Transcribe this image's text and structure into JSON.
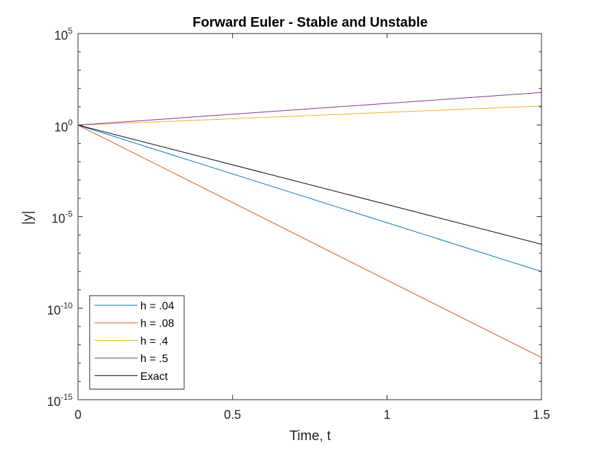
{
  "chart_data": {
    "type": "line",
    "title": "Forward Euler - Stable and Unstable",
    "xlabel": "Time, t",
    "ylabel": "|y|",
    "xlim": [
      0,
      1.5
    ],
    "ylim_exponents": [
      -15,
      5
    ],
    "yscale": "log",
    "x_ticks": [
      {
        "value": 0,
        "label": "0"
      },
      {
        "value": 0.5,
        "label": "0.5"
      },
      {
        "value": 1,
        "label": "1"
      },
      {
        "value": 1.5,
        "label": "1.5"
      }
    ],
    "y_ticks": [
      {
        "exponent": -15,
        "base": "10",
        "exp": "-15"
      },
      {
        "exponent": -10,
        "base": "10",
        "exp": "-10"
      },
      {
        "exponent": -5,
        "base": "10",
        "exp": "-5"
      },
      {
        "exponent": 0,
        "base": "10",
        "exp": "0"
      },
      {
        "exponent": 5,
        "base": "10",
        "exp": "5"
      }
    ],
    "grid": false,
    "legend_position": "bottom-left",
    "series": [
      {
        "name": "h = .04",
        "color": "#0072BD",
        "x": [
          0,
          1.5
        ],
        "y": [
          1,
          1e-08
        ]
      },
      {
        "name": "h = .08",
        "color": "#D95319",
        "x": [
          0,
          1.5
        ],
        "y": [
          1,
          2e-13
        ]
      },
      {
        "name": "h = .4",
        "color": "#EDB120",
        "x": [
          0,
          1.5
        ],
        "y": [
          1,
          11
        ]
      },
      {
        "name": "h = .5",
        "color": "#7E2F8E",
        "x": [
          0,
          1.5
        ],
        "y": [
          1,
          60
        ]
      },
      {
        "name": "Exact",
        "color": "#000000",
        "x": [
          0,
          1.5
        ],
        "y": [
          1,
          3.1e-07
        ]
      }
    ]
  }
}
